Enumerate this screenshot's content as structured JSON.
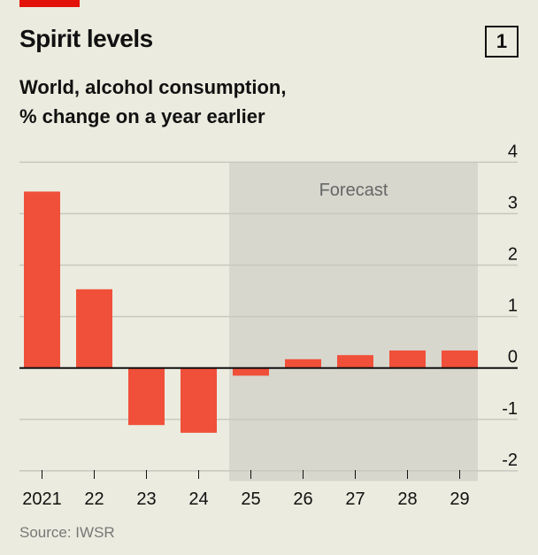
{
  "header": {
    "title": "Spirit levels",
    "chart_number": "1",
    "subtitle_line1": "World, alcohol consumption,",
    "subtitle_line2": "% change on a year earlier"
  },
  "source": "Source: IWSR",
  "colors": {
    "bar": "#f0503a",
    "forecast_shade": "#d7d7ce",
    "background": "#ebebdf",
    "accent": "#e3120b"
  },
  "chart_data": {
    "type": "bar",
    "title": "Spirit levels",
    "subtitle": "World, alcohol consumption, % change on a year earlier",
    "categories": [
      "2021",
      "22",
      "23",
      "24",
      "25",
      "26",
      "27",
      "28",
      "29"
    ],
    "values": [
      3.43,
      1.53,
      -1.11,
      -1.26,
      -0.15,
      0.17,
      0.25,
      0.34,
      0.34
    ],
    "yticks": [
      "4",
      "3",
      "2",
      "1",
      "0",
      "-1",
      "-2"
    ],
    "ytick_values": [
      4,
      3,
      2,
      1,
      0,
      -1,
      -2
    ],
    "ylim": [
      -2,
      4
    ],
    "xlabel": "",
    "ylabel": "",
    "annotation": "Forecast",
    "forecast_range": [
      "25",
      "29"
    ],
    "grid": true,
    "yaxis_side": "right"
  }
}
